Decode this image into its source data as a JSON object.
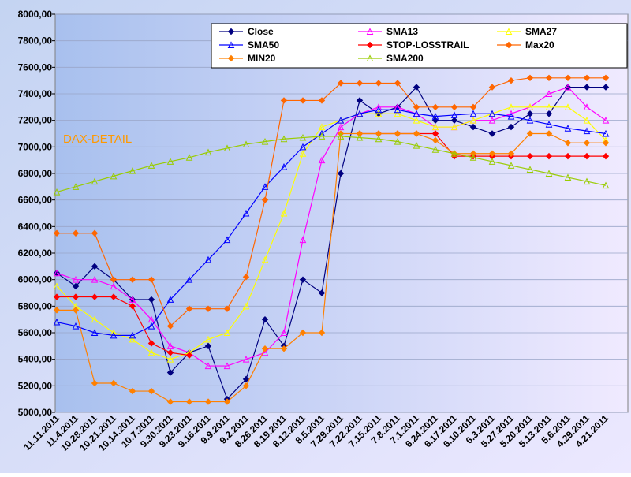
{
  "chart_data": {
    "type": "line",
    "annotation": "DAX-DETAIL",
    "categories": [
      "11.11.2011",
      "11.4.2011",
      "10.28.2011",
      "10.21.2011",
      "10.14.2011",
      "10.7.2011",
      "9.30.2011",
      "9.23.2011",
      "9.16.2011",
      "9.9.2011",
      "9.2.2011",
      "8.26.2011",
      "8.19.2011",
      "8.12.2011",
      "8.5.2011",
      "7.29.2011",
      "7.22.2011",
      "7.15.2011",
      "7.8.2011",
      "7.1.2011",
      "6.24.2011",
      "6.17.2011",
      "6.10.2011",
      "6.3.2011",
      "5.27.2011",
      "5.20.2011",
      "5.13.2011",
      "5.6.2011",
      "4.29.2011",
      "4.21.2011"
    ],
    "ylim": [
      5000,
      8000
    ],
    "yticks": [
      {
        "value": 5000,
        "label": "5000,00"
      },
      {
        "value": 5200,
        "label": "5200,00"
      },
      {
        "value": 5400,
        "label": "5400,00"
      },
      {
        "value": 5600,
        "label": "5600,00"
      },
      {
        "value": 5800,
        "label": "5800,00"
      },
      {
        "value": 6000,
        "label": "6000,00"
      },
      {
        "value": 6200,
        "label": "6200,00"
      },
      {
        "value": 6400,
        "label": "6400,00"
      },
      {
        "value": 6600,
        "label": "6600,00"
      },
      {
        "value": 6800,
        "label": "6800,00"
      },
      {
        "value": 7000,
        "label": "7000,00"
      },
      {
        "value": 7200,
        "label": "7200,00"
      },
      {
        "value": 7400,
        "label": "7400,00"
      },
      {
        "value": 7600,
        "label": "7600,00"
      },
      {
        "value": 7800,
        "label": "7800,00"
      },
      {
        "value": 8000,
        "label": "8000,00"
      }
    ],
    "grid": true,
    "series": [
      {
        "name": "Close",
        "color": "#000080",
        "marker": "diamond",
        "values": [
          6050,
          5950,
          6100,
          6000,
          5850,
          5850,
          5300,
          5450,
          5500,
          5100,
          5250,
          5700,
          5500,
          6000,
          5900,
          6800,
          7350,
          7250,
          7300,
          7450,
          7200,
          7200,
          7150,
          7100,
          7150,
          7250,
          7250,
          7450,
          7450,
          7450
        ]
      },
      {
        "name": "SMA13",
        "color": "#ff00ff",
        "marker": "triangle",
        "values": [
          6050,
          6000,
          6000,
          5950,
          5850,
          5700,
          5500,
          5450,
          5350,
          5350,
          5400,
          5450,
          5600,
          6300,
          6900,
          7150,
          7250,
          7300,
          7300,
          7250,
          7150,
          7150,
          7200,
          7200,
          7250,
          7300,
          7400,
          7450,
          7300,
          7200
        ]
      },
      {
        "name": "SMA27",
        "color": "#ffff00",
        "marker": "triangle",
        "values": [
          5950,
          5800,
          5700,
          5600,
          5550,
          5450,
          5400,
          5450,
          5550,
          5600,
          5800,
          6150,
          6500,
          6950,
          7150,
          7200,
          7250,
          7250,
          7250,
          7200,
          7150,
          7150,
          7200,
          7250,
          7300,
          7300,
          7300,
          7300,
          7200,
          7050
        ]
      },
      {
        "name": "SMA50",
        "color": "#0000ff",
        "marker": "triangle",
        "values": [
          5680,
          5650,
          5600,
          5580,
          5580,
          5650,
          5850,
          6000,
          6150,
          6300,
          6500,
          6700,
          6850,
          7000,
          7100,
          7200,
          7250,
          7280,
          7280,
          7250,
          7230,
          7240,
          7250,
          7250,
          7230,
          7200,
          7170,
          7140,
          7120,
          7100
        ]
      },
      {
        "name": "STOP-LOSSTRAIL",
        "color": "#ff0000",
        "marker": "diamond",
        "values": [
          5870,
          5870,
          5870,
          5870,
          5800,
          5520,
          5450,
          5430,
          null,
          null,
          null,
          null,
          null,
          null,
          null,
          null,
          7100,
          7100,
          7100,
          7100,
          7100,
          6930,
          6930,
          6930,
          6930,
          6930,
          6930,
          6930,
          6930,
          6930
        ]
      },
      {
        "name": "Max20",
        "color": "#ff6600",
        "marker": "diamond",
        "values": [
          6350,
          6350,
          6350,
          6000,
          6000,
          6000,
          5650,
          5780,
          5780,
          5780,
          6020,
          6600,
          7350,
          7350,
          7350,
          7480,
          7480,
          7480,
          7480,
          7300,
          7300,
          7300,
          7300,
          7450,
          7500,
          7520,
          7520,
          7520,
          7520,
          7520
        ]
      },
      {
        "name": "MIN20",
        "color": "#ff8000",
        "marker": "diamond",
        "values": [
          5770,
          5770,
          5220,
          5220,
          5160,
          5160,
          5080,
          5080,
          5080,
          5080,
          5200,
          5480,
          5480,
          5600,
          5600,
          7100,
          7100,
          7100,
          7100,
          7100,
          7050,
          6950,
          6950,
          6950,
          6950,
          7100,
          7100,
          7030,
          7030,
          7030
        ]
      },
      {
        "name": "SMA200",
        "color": "#99cc00",
        "marker": "triangle",
        "values": [
          6660,
          6700,
          6740,
          6780,
          6820,
          6860,
          6890,
          6920,
          6960,
          6990,
          7020,
          7040,
          7060,
          7070,
          7080,
          7080,
          7070,
          7060,
          7040,
          7010,
          6980,
          6950,
          6920,
          6890,
          6860,
          6830,
          6800,
          6770,
          6740,
          6710
        ]
      }
    ]
  }
}
